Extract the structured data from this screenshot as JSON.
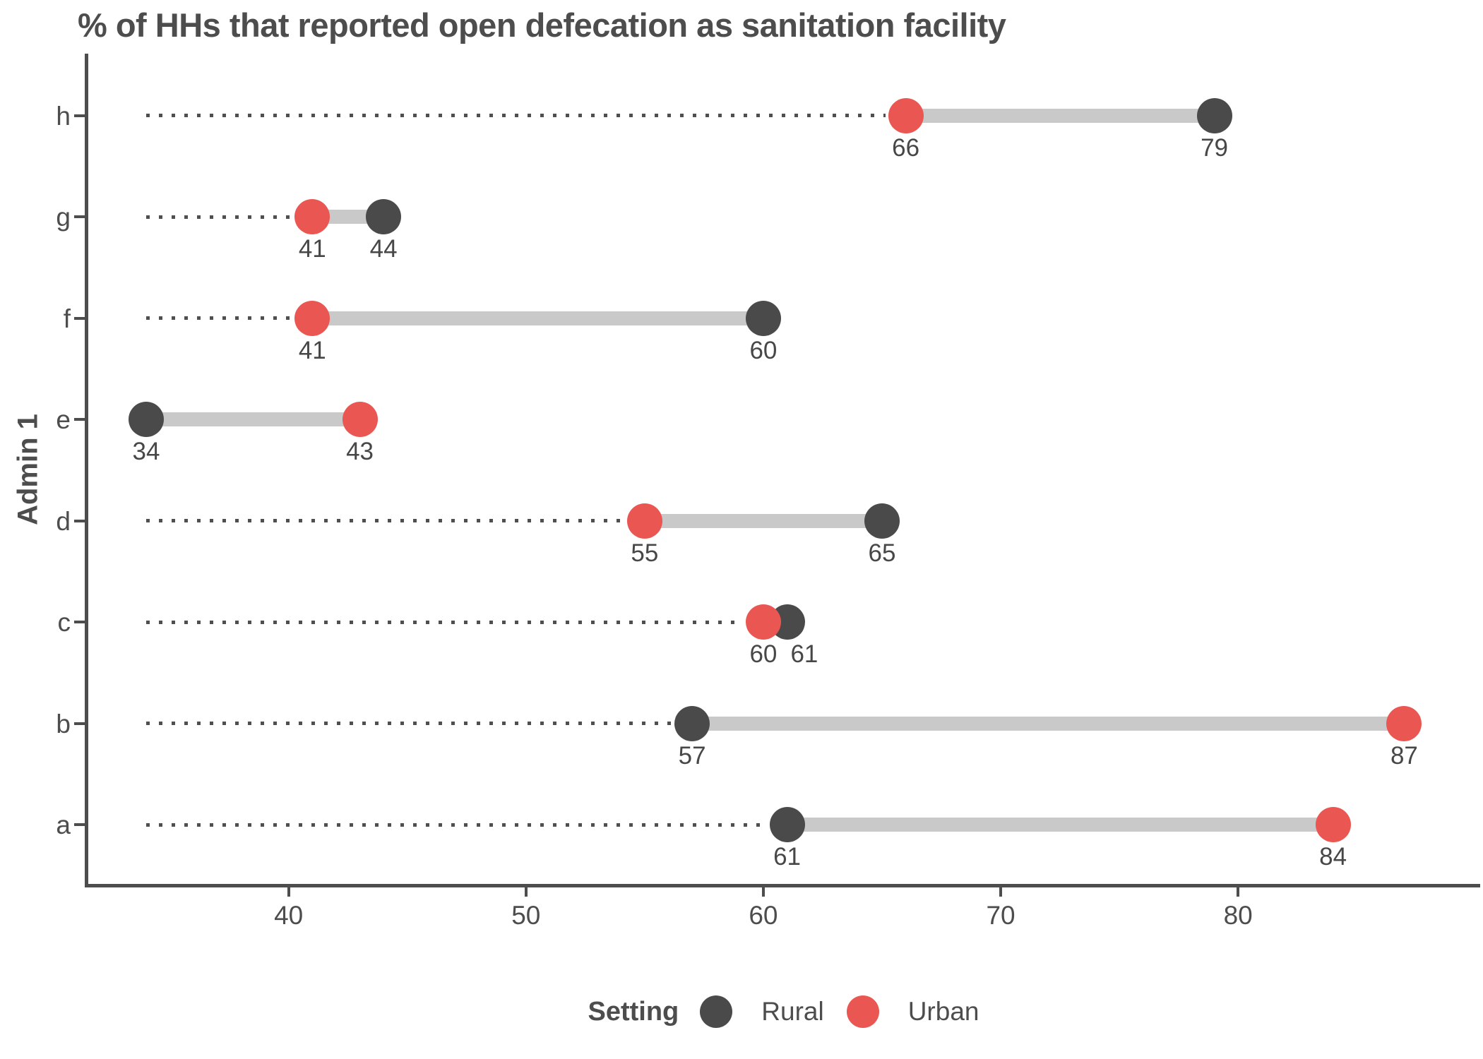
{
  "chart_data": {
    "type": "dumbbell",
    "title": "% of HHs that reported open defecation as sanitation facility",
    "xlabel": "",
    "ylabel": "Admin 1",
    "categories": [
      "h",
      "g",
      "f",
      "e",
      "d",
      "c",
      "b",
      "a"
    ],
    "series": [
      {
        "name": "Rural",
        "color": "#4a4a4a",
        "values": [
          79,
          44,
          60,
          34,
          65,
          61,
          57,
          61
        ]
      },
      {
        "name": "Urban",
        "color": "#ea5752",
        "values": [
          66,
          41,
          41,
          43,
          55,
          60,
          87,
          84
        ]
      }
    ],
    "x_ticks": [
      40,
      50,
      60,
      70,
      80
    ],
    "xlim": [
      31.5,
      90.2
    ],
    "grid": false,
    "point_value_labels": true,
    "connector_color": "#c9c9c9",
    "leader_line": {
      "style": "dotted",
      "from_value": 34,
      "color": "#4f4f4f"
    },
    "legend": {
      "title": "Setting",
      "position": "bottom",
      "items": [
        "Rural",
        "Urban"
      ]
    },
    "axis_color": "#4d4d4d",
    "text_color": "#4d4d4d"
  }
}
